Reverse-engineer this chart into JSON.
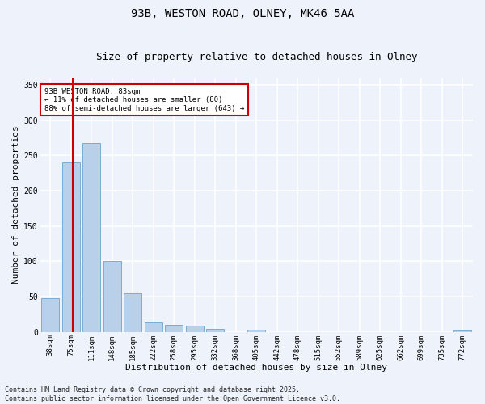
{
  "title1": "93B, WESTON ROAD, OLNEY, MK46 5AA",
  "title2": "Size of property relative to detached houses in Olney",
  "xlabel": "Distribution of detached houses by size in Olney",
  "ylabel": "Number of detached properties",
  "categories": [
    "38sqm",
    "75sqm",
    "111sqm",
    "148sqm",
    "185sqm",
    "222sqm",
    "258sqm",
    "295sqm",
    "332sqm",
    "368sqm",
    "405sqm",
    "442sqm",
    "478sqm",
    "515sqm",
    "552sqm",
    "589sqm",
    "625sqm",
    "662sqm",
    "699sqm",
    "735sqm",
    "772sqm"
  ],
  "values": [
    48,
    240,
    267,
    100,
    55,
    14,
    10,
    9,
    4,
    0,
    3,
    0,
    0,
    0,
    0,
    0,
    0,
    0,
    0,
    0,
    2
  ],
  "bar_color": "#b8d0ea",
  "bar_edge_color": "#7aadd4",
  "annotation_box_color": "#ffffff",
  "annotation_border_color": "#cc0000",
  "vline_color": "#cc0000",
  "ylim": [
    0,
    360
  ],
  "yticks": [
    0,
    50,
    100,
    150,
    200,
    250,
    300,
    350
  ],
  "background_color": "#edf2fb",
  "grid_color": "#ffffff",
  "footer": "Contains HM Land Registry data © Crown copyright and database right 2025.\nContains public sector information licensed under the Open Government Licence v3.0.",
  "title_fontsize": 10,
  "subtitle_fontsize": 9,
  "axis_label_fontsize": 8,
  "tick_fontsize": 6.5,
  "footer_fontsize": 6,
  "vline_x": 1.1,
  "annot_text": "93B WESTON ROAD: 83sqm\n← 11% of detached houses are smaller (80)\n88% of semi-detached houses are larger (643) →"
}
